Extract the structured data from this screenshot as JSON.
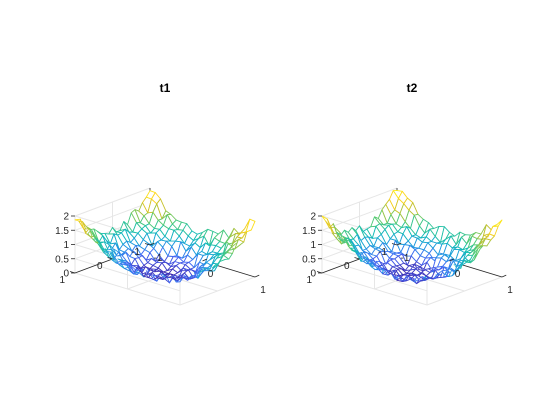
{
  "chart_data": [
    {
      "type": "surface",
      "title": "t1",
      "xlabel": "",
      "ylabel": "",
      "zlabel": "",
      "xlim": [
        -1,
        1
      ],
      "ylim": [
        -1,
        1
      ],
      "zlim": [
        0,
        2
      ],
      "xticks": [
        "-1",
        "0",
        "1"
      ],
      "yticks": [
        "-1",
        "0",
        "1"
      ],
      "zticks": [
        "0",
        "0.5",
        "1",
        "1.5",
        "2"
      ],
      "grid": true,
      "colormap": [
        "#3e26a8",
        "#4669f6",
        "#1e9bdf",
        "#13bdb6",
        "#58cb70",
        "#c1c02e",
        "#fdd220",
        "#f9fb14"
      ],
      "surface": {
        "grid_n": 21,
        "base_function": "x^2 + y^2",
        "x_range": [
          -1,
          1
        ],
        "y_range": [
          -1,
          1
        ],
        "noise_amplitude": 0.18,
        "seed": 11
      }
    },
    {
      "type": "surface",
      "title": "t2",
      "xlabel": "",
      "ylabel": "",
      "zlabel": "",
      "xlim": [
        -1,
        1
      ],
      "ylim": [
        -1,
        1
      ],
      "zlim": [
        0,
        2
      ],
      "xticks": [
        "-1",
        "0",
        "1"
      ],
      "yticks": [
        "-1",
        "0",
        "1"
      ],
      "zticks": [
        "0",
        "0.5",
        "1",
        "1.5",
        "2"
      ],
      "grid": true,
      "colormap": [
        "#3e26a8",
        "#4669f6",
        "#1e9bdf",
        "#13bdb6",
        "#58cb70",
        "#c1c02e",
        "#fdd220",
        "#f9fb14"
      ],
      "surface": {
        "grid_n": 21,
        "base_function": "x^2 + y^2",
        "x_range": [
          -1,
          1
        ],
        "y_range": [
          -1,
          1
        ],
        "noise_amplitude": 0.18,
        "seed": 29
      }
    }
  ]
}
